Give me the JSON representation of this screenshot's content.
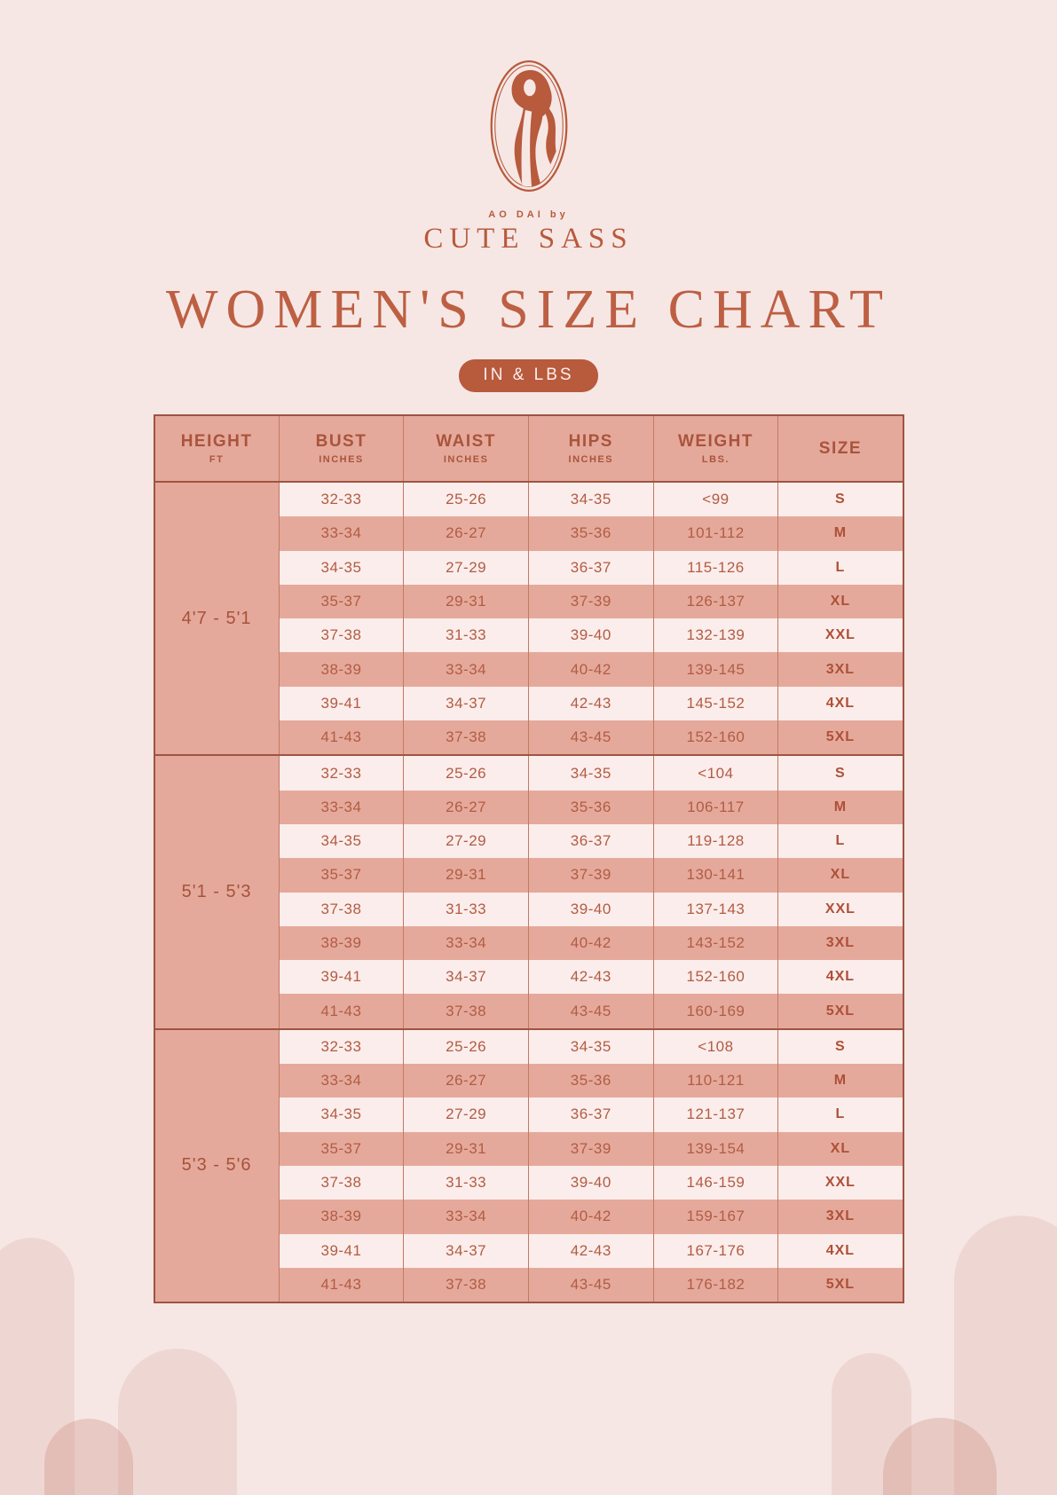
{
  "brand": {
    "tagline": "AO DAI by",
    "name": "CUTE SASS"
  },
  "title": "WOMEN'S SIZE CHART",
  "units_badge": "IN & LBS",
  "colors": {
    "background": "#f6e7e5",
    "accent_terracotta": "#b85a3c",
    "salmon_cell": "#e5a99b",
    "light_cell": "#fbedeb",
    "dark_border": "#9e5441"
  },
  "table": {
    "columns": [
      {
        "label": "HEIGHT",
        "sub": "FT"
      },
      {
        "label": "BUST",
        "sub": "INCHES"
      },
      {
        "label": "WAIST",
        "sub": "INCHES"
      },
      {
        "label": "HIPS",
        "sub": "INCHES"
      },
      {
        "label": "WEIGHT",
        "sub": "LBS."
      },
      {
        "label": "SIZE",
        "sub": ""
      }
    ],
    "groups": [
      {
        "height": "4'7 - 5'1",
        "rows": [
          {
            "bust": "32-33",
            "waist": "25-26",
            "hips": "34-35",
            "weight": "<99",
            "size": "S"
          },
          {
            "bust": "33-34",
            "waist": "26-27",
            "hips": "35-36",
            "weight": "101-112",
            "size": "M"
          },
          {
            "bust": "34-35",
            "waist": "27-29",
            "hips": "36-37",
            "weight": "115-126",
            "size": "L"
          },
          {
            "bust": "35-37",
            "waist": "29-31",
            "hips": "37-39",
            "weight": "126-137",
            "size": "XL"
          },
          {
            "bust": "37-38",
            "waist": "31-33",
            "hips": "39-40",
            "weight": "132-139",
            "size": "XXL"
          },
          {
            "bust": "38-39",
            "waist": "33-34",
            "hips": "40-42",
            "weight": "139-145",
            "size": "3XL"
          },
          {
            "bust": "39-41",
            "waist": "34-37",
            "hips": "42-43",
            "weight": "145-152",
            "size": "4XL"
          },
          {
            "bust": "41-43",
            "waist": "37-38",
            "hips": "43-45",
            "weight": "152-160",
            "size": "5XL"
          }
        ]
      },
      {
        "height": "5'1 - 5'3",
        "rows": [
          {
            "bust": "32-33",
            "waist": "25-26",
            "hips": "34-35",
            "weight": "<104",
            "size": "S"
          },
          {
            "bust": "33-34",
            "waist": "26-27",
            "hips": "35-36",
            "weight": "106-117",
            "size": "M"
          },
          {
            "bust": "34-35",
            "waist": "27-29",
            "hips": "36-37",
            "weight": "119-128",
            "size": "L"
          },
          {
            "bust": "35-37",
            "waist": "29-31",
            "hips": "37-39",
            "weight": "130-141",
            "size": "XL"
          },
          {
            "bust": "37-38",
            "waist": "31-33",
            "hips": "39-40",
            "weight": "137-143",
            "size": "XXL"
          },
          {
            "bust": "38-39",
            "waist": "33-34",
            "hips": "40-42",
            "weight": "143-152",
            "size": "3XL"
          },
          {
            "bust": "39-41",
            "waist": "34-37",
            "hips": "42-43",
            "weight": "152-160",
            "size": "4XL"
          },
          {
            "bust": "41-43",
            "waist": "37-38",
            "hips": "43-45",
            "weight": "160-169",
            "size": "5XL"
          }
        ]
      },
      {
        "height": "5'3 - 5'6",
        "rows": [
          {
            "bust": "32-33",
            "waist": "25-26",
            "hips": "34-35",
            "weight": "<108",
            "size": "S"
          },
          {
            "bust": "33-34",
            "waist": "26-27",
            "hips": "35-36",
            "weight": "110-121",
            "size": "M"
          },
          {
            "bust": "34-35",
            "waist": "27-29",
            "hips": "36-37",
            "weight": "121-137",
            "size": "L"
          },
          {
            "bust": "35-37",
            "waist": "29-31",
            "hips": "37-39",
            "weight": "139-154",
            "size": "XL"
          },
          {
            "bust": "37-38",
            "waist": "31-33",
            "hips": "39-40",
            "weight": "146-159",
            "size": "XXL"
          },
          {
            "bust": "38-39",
            "waist": "33-34",
            "hips": "40-42",
            "weight": "159-167",
            "size": "3XL"
          },
          {
            "bust": "39-41",
            "waist": "34-37",
            "hips": "42-43",
            "weight": "167-176",
            "size": "4XL"
          },
          {
            "bust": "41-43",
            "waist": "37-38",
            "hips": "43-45",
            "weight": "176-182",
            "size": "5XL"
          }
        ]
      }
    ]
  }
}
